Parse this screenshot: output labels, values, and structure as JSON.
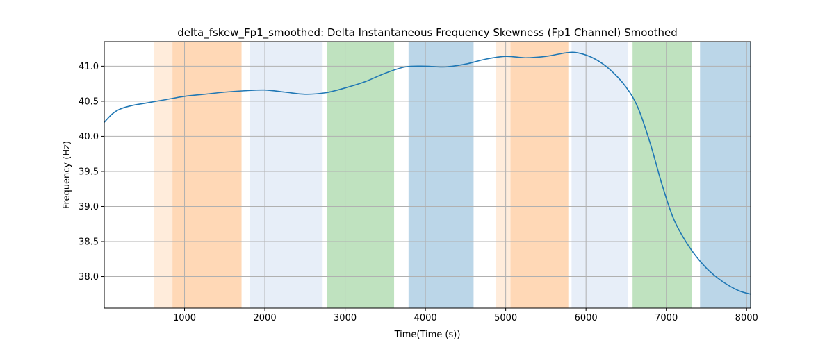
{
  "chart_data": {
    "type": "line",
    "title": "delta_fskew_Fp1_smoothed: Delta Instantaneous Frequency Skewness (Fp1 Channel) Smoothed",
    "xlabel": "Time(Time (s))",
    "ylabel": "Frequency (Hz)",
    "xlim": [
      0,
      8050
    ],
    "ylim": [
      37.55,
      41.35
    ],
    "grid": true,
    "x_ticks": [
      1000,
      2000,
      3000,
      4000,
      5000,
      6000,
      7000,
      8000
    ],
    "y_ticks": [
      38.0,
      38.5,
      39.0,
      39.5,
      40.0,
      40.5,
      41.0
    ],
    "x_tick_labels": [
      "1000",
      "2000",
      "3000",
      "4000",
      "5000",
      "6000",
      "7000",
      "8000"
    ],
    "y_tick_labels": [
      "38.0",
      "38.5",
      "39.0",
      "39.5",
      "40.0",
      "40.5",
      "41.0"
    ],
    "line_color": "#1f77b4",
    "shaded_regions": [
      {
        "x0": 620,
        "x1": 850,
        "color": "#ff7f0e",
        "alpha": 0.15
      },
      {
        "x0": 850,
        "x1": 1710,
        "color": "#ff7f0e",
        "alpha": 0.3
      },
      {
        "x0": 1810,
        "x1": 2720,
        "color": "#aec7e8",
        "alpha": 0.3
      },
      {
        "x0": 2770,
        "x1": 3610,
        "color": "#2ca02c",
        "alpha": 0.3
      },
      {
        "x0": 3790,
        "x1": 4600,
        "color": "#1f77b4",
        "alpha": 0.3
      },
      {
        "x0": 4880,
        "x1": 5060,
        "color": "#ff7f0e",
        "alpha": 0.15
      },
      {
        "x0": 5060,
        "x1": 5780,
        "color": "#ff7f0e",
        "alpha": 0.3
      },
      {
        "x0": 5820,
        "x1": 6520,
        "color": "#aec7e8",
        "alpha": 0.3
      },
      {
        "x0": 6580,
        "x1": 7320,
        "color": "#2ca02c",
        "alpha": 0.3
      },
      {
        "x0": 7420,
        "x1": 8050,
        "color": "#1f77b4",
        "alpha": 0.3
      }
    ],
    "series": [
      {
        "x": [
          0,
          100,
          200,
          350,
          500,
          750,
          1000,
          1250,
          1500,
          1750,
          2000,
          2250,
          2500,
          2750,
          3000,
          3250,
          3500,
          3750,
          4000,
          4250,
          4500,
          4750,
          5000,
          5250,
          5500,
          5750,
          5900,
          6100,
          6300,
          6500,
          6650,
          6800,
          6950,
          7100,
          7300,
          7500,
          7700,
          7900,
          8050
        ],
        "values": [
          40.2,
          40.32,
          40.39,
          40.44,
          40.47,
          40.52,
          40.57,
          40.6,
          40.63,
          40.65,
          40.66,
          40.63,
          40.6,
          40.62,
          40.69,
          40.78,
          40.9,
          40.99,
          41.0,
          40.99,
          41.03,
          41.1,
          41.14,
          41.12,
          41.14,
          41.19,
          41.19,
          41.11,
          40.95,
          40.7,
          40.4,
          39.9,
          39.3,
          38.8,
          38.4,
          38.12,
          37.93,
          37.8,
          37.75
        ]
      }
    ]
  }
}
